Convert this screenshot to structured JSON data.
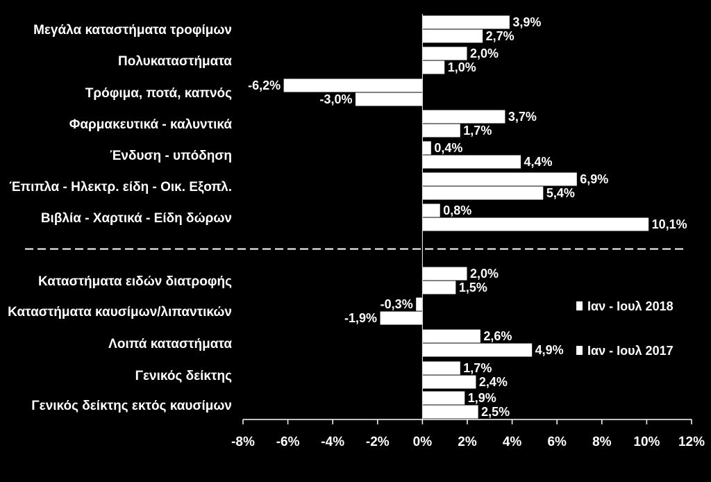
{
  "chart_data": {
    "type": "bar",
    "orientation": "horizontal",
    "background": "#000000",
    "bar_color": "#ffffff",
    "categories": [
      "Μεγάλα καταστήματα τροφίμων",
      "Πολυκαταστήματα",
      "Τρόφιμα, ποτά, καπνός",
      "Φαρμακευτικά - καλυντικά",
      "Ένδυση - υπόδηση",
      "Έπιπλα - Ηλεκτρ. είδη - Οικ. Εξοπλ.",
      "Βιβλία - Χαρτικά - Είδη δώρων",
      "Καταστήματα ειδών διατροφής",
      "Καταστήματα καυσίμων/λιπαντικών",
      "Λοιπά καταστήματα",
      "Γενικός δείκτης",
      "Γενικός δείκτης εκτός καυσίμων"
    ],
    "group_separator_after_index": 6,
    "series": [
      {
        "name": "Ιαν - Ιουλ 2018",
        "values": [
          3.9,
          2.0,
          -6.2,
          3.7,
          0.4,
          6.9,
          0.8,
          2.0,
          -0.3,
          2.6,
          1.7,
          1.9
        ],
        "labels": [
          "3,9%",
          "2,0%",
          "-6,2%",
          "3,7%",
          "0,4%",
          "6,9%",
          "0,8%",
          "2,0%",
          "-0,3%",
          "2,6%",
          "1,7%",
          "1,9%"
        ]
      },
      {
        "name": "Ιαν - Ιουλ 2017",
        "values": [
          2.7,
          1.0,
          -3.0,
          1.7,
          4.4,
          5.4,
          10.1,
          1.5,
          -1.9,
          4.9,
          2.4,
          2.5
        ],
        "labels": [
          "2,7%",
          "1,0%",
          "-3,0%",
          "1,7%",
          "4,4%",
          "5,4%",
          "10,1%",
          "1,5%",
          "-1,9%",
          "4,9%",
          "2,4%",
          "2,5%"
        ]
      }
    ],
    "xlim": [
      -8,
      12
    ],
    "xticks": [
      -8,
      -6,
      -4,
      -2,
      0,
      2,
      4,
      6,
      8,
      10,
      12
    ],
    "xtick_labels": [
      "-8%",
      "-6%",
      "-4%",
      "-2%",
      "0%",
      "2%",
      "4%",
      "6%",
      "8%",
      "10%",
      "12%"
    ],
    "legend_position": "right",
    "grid": false
  }
}
